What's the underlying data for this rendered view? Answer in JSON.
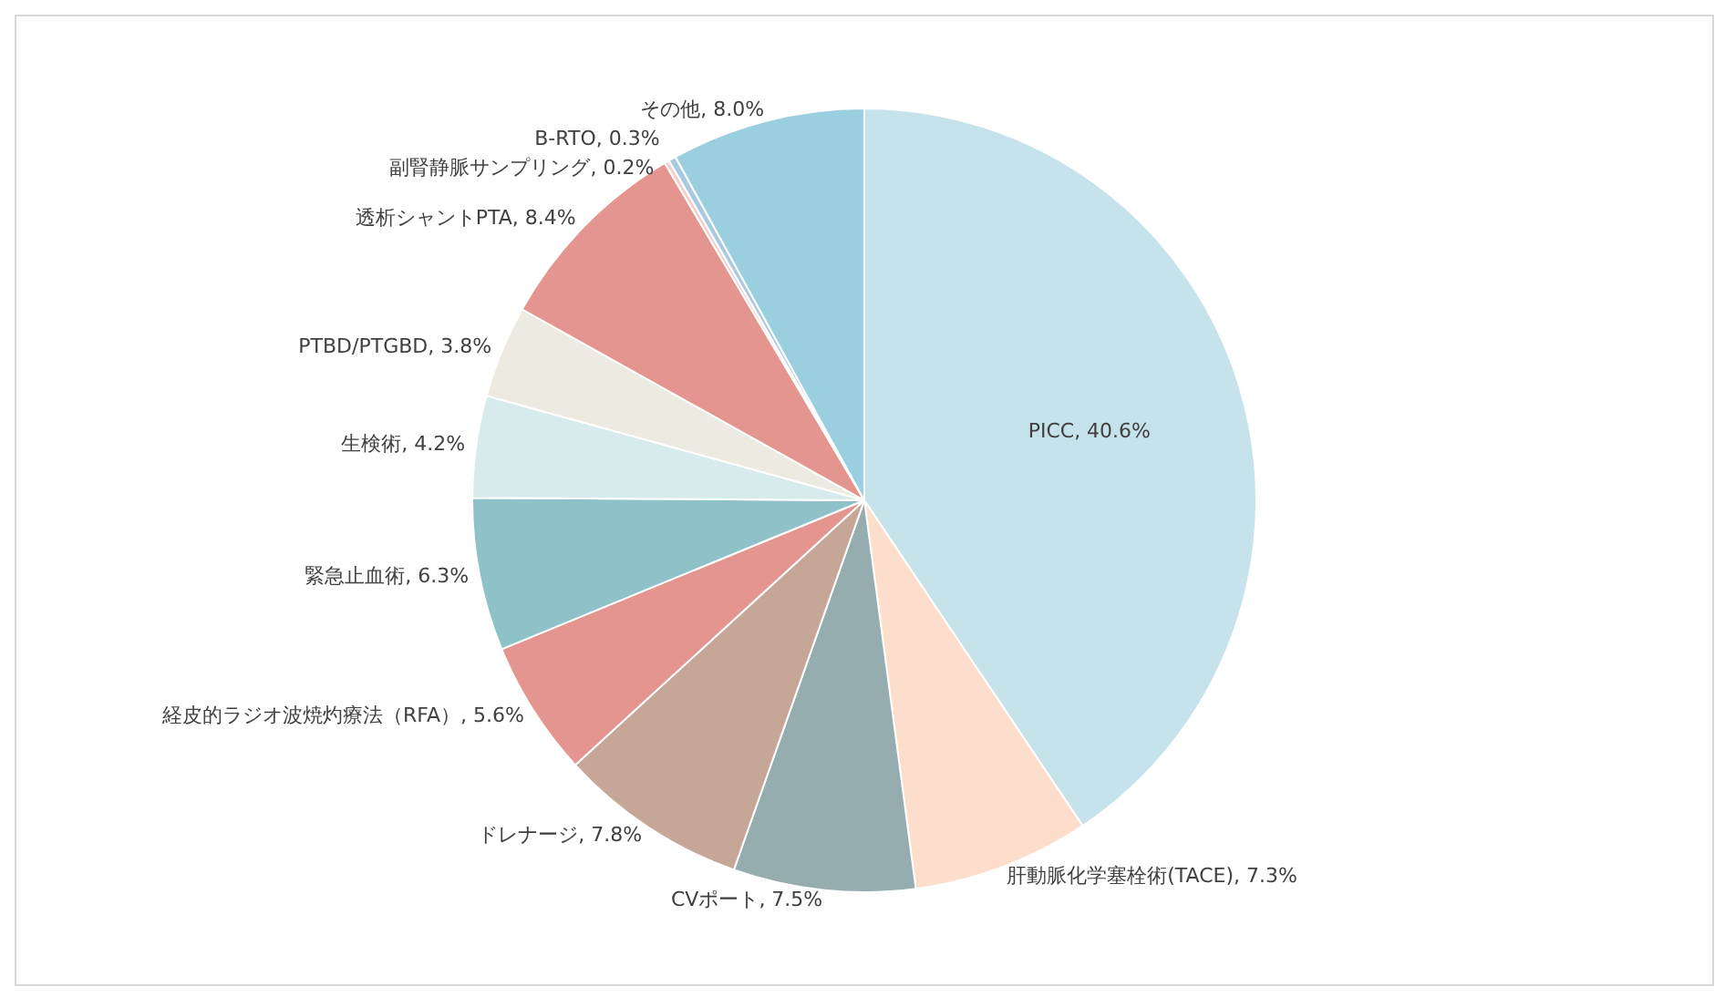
{
  "chart_data": {
    "type": "pie",
    "categories": [
      "PICC",
      "肝動脈化学塞栓術(TACE)",
      "CVポート",
      "ドレナージ",
      "経皮的ラジオ波焼灼療法（RFA）",
      "緊急止血術",
      "生検術",
      "PTBD/PTGBD",
      "透析シャントPTA",
      "副腎静脈サンプリング",
      "B-RTO",
      "その他"
    ],
    "values": [
      40.6,
      7.3,
      7.5,
      7.8,
      5.6,
      6.3,
      4.2,
      3.8,
      8.4,
      0.2,
      0.3,
      8.0
    ],
    "colors": [
      "#c6e3ec",
      "#fddecd",
      "#96adb0",
      "#c5a697",
      "#e4958f",
      "#8fc2c8",
      "#d7ebec",
      "#edebe1",
      "#e4958f",
      "#f2cfcf",
      "#a9c9e1",
      "#99cfdf"
    ],
    "value_labels": [
      ", 40.6%",
      ", 7.3%",
      ", 7.5%",
      ", 7.8%",
      ", 5.6%",
      ", 6.3%",
      ", 4.2%",
      ", 3.8%",
      ", 8.4%",
      ", 0.2%",
      ", 0.3%",
      ", 8.0%"
    ],
    "legend": false
  }
}
